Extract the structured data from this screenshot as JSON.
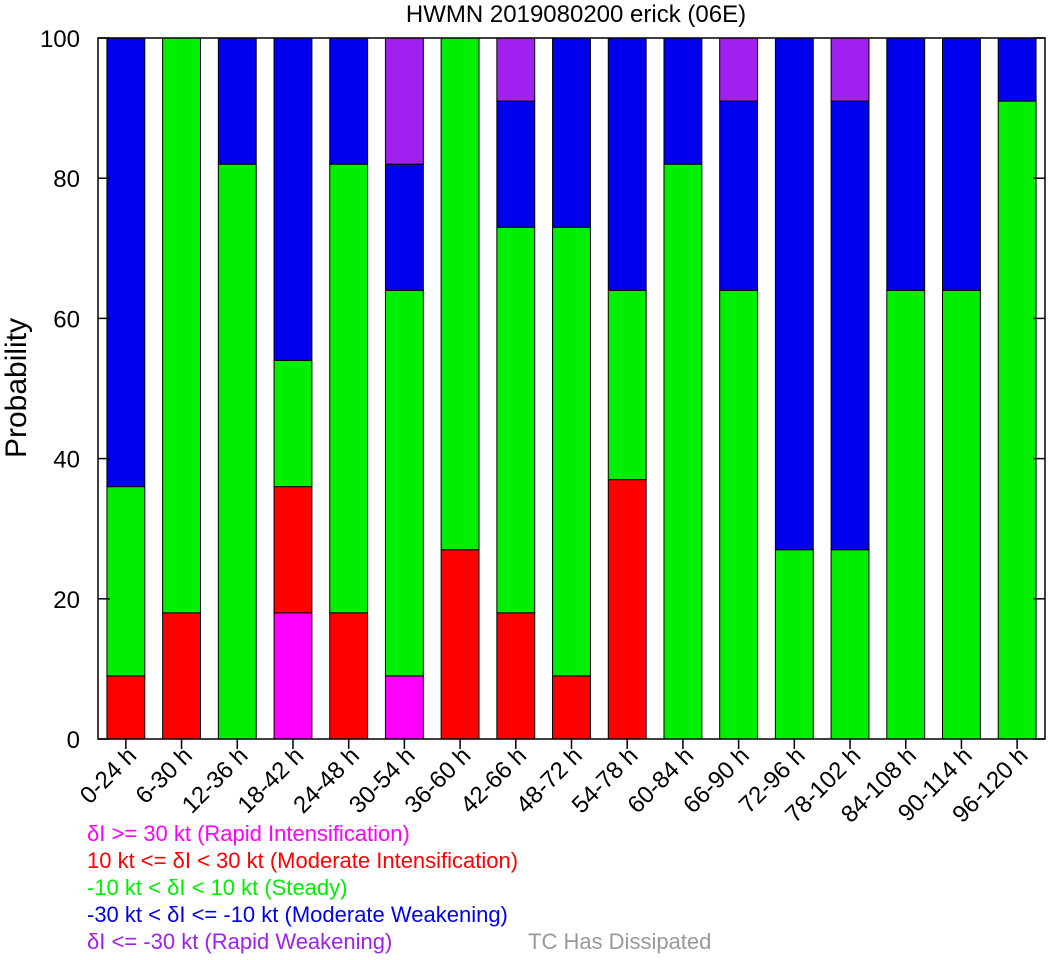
{
  "chart_data": {
    "type": "bar",
    "stacked": true,
    "title": "HWMN 2019080200 erick (06E)",
    "xlabel": "",
    "ylabel": "Probability",
    "ylim": [
      0,
      100
    ],
    "yticks": [
      0,
      20,
      40,
      60,
      80,
      100
    ],
    "grid": false,
    "categories": [
      "0-24 h",
      "6-30 h",
      "12-36 h",
      "18-42 h",
      "24-48 h",
      "30-54 h",
      "36-60 h",
      "42-66 h",
      "48-72 h",
      "54-78 h",
      "60-84 h",
      "66-90 h",
      "72-96 h",
      "78-102 h",
      "84-108 h",
      "90-114 h",
      "96-120 h"
    ],
    "series": [
      {
        "name": "δI >= 30 kt (Rapid Intensification)",
        "color": "#ff00ff",
        "values": [
          0,
          0,
          0,
          18,
          0,
          9,
          0,
          0,
          0,
          0,
          0,
          0,
          0,
          0,
          0,
          0,
          0
        ]
      },
      {
        "name": "10 kt <= δI < 30 kt (Moderate Intensification)",
        "color": "#ff0000",
        "values": [
          9,
          18,
          0,
          18,
          18,
          0,
          27,
          18,
          9,
          37,
          0,
          0,
          0,
          0,
          0,
          0,
          0
        ]
      },
      {
        "name": "-10 kt < δI < 10 kt (Steady)",
        "color": "#00ee00",
        "values": [
          27,
          82,
          82,
          18,
          64,
          55,
          73,
          55,
          64,
          27,
          82,
          64,
          27,
          27,
          64,
          64,
          91
        ]
      },
      {
        "name": "-30 kt < δI <= -10 kt (Moderate Weakening)",
        "color": "#0000ee",
        "values": [
          64,
          0,
          18,
          46,
          18,
          18,
          0,
          18,
          27,
          36,
          18,
          27,
          73,
          64,
          36,
          36,
          9
        ]
      },
      {
        "name": "δI <= -30 kt (Rapid Weakening)",
        "color": "#a020f0",
        "values": [
          0,
          0,
          0,
          0,
          0,
          18,
          0,
          9,
          0,
          0,
          0,
          9,
          0,
          9,
          0,
          0,
          0
        ]
      }
    ],
    "extra_legend": {
      "label": "TC Has Dissipated",
      "color": "#999999"
    }
  }
}
